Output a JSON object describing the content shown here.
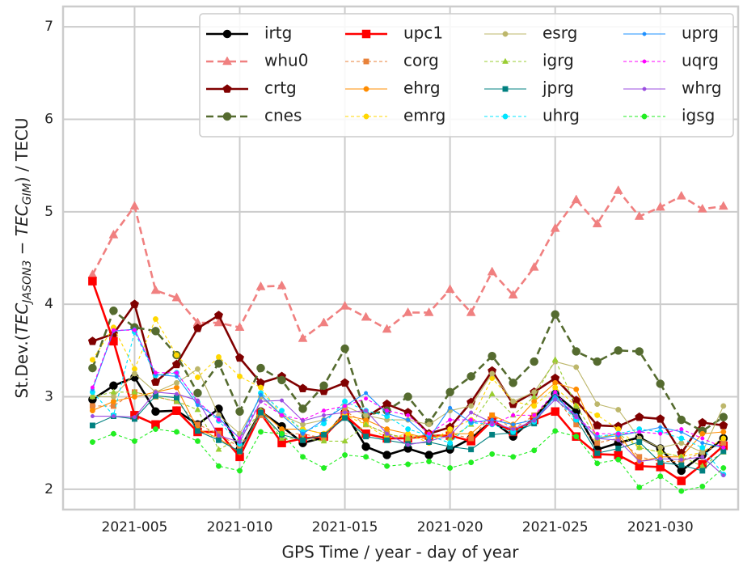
{
  "chart_data": {
    "type": "line",
    "xlabel": "GPS Time / year - day of year",
    "ylabel": {
      "prefix": "St.Dev.(",
      "term1": "TEC",
      "sub1": "JASON3",
      "op": " − ",
      "term2": "TEC",
      "sub2": "GIM",
      "suffix": ") / TECU"
    },
    "x": [
      3,
      4,
      5,
      6,
      7,
      8,
      9,
      10,
      11,
      12,
      13,
      14,
      15,
      16,
      17,
      18,
      19,
      20,
      21,
      22,
      23,
      24,
      25,
      26,
      27,
      28,
      29,
      30,
      31,
      32,
      33
    ],
    "xlim": [
      1.6,
      33.7
    ],
    "xticks": [
      {
        "value": 5,
        "label": "2021-005"
      },
      {
        "value": 10,
        "label": "2021-010"
      },
      {
        "value": 15,
        "label": "2021-015"
      },
      {
        "value": 20,
        "label": "2021-020"
      },
      {
        "value": 25,
        "label": "2021-025"
      },
      {
        "value": 30,
        "label": "2021-030"
      }
    ],
    "ylim": [
      1.78,
      7.22
    ],
    "yticks": [
      2,
      3,
      4,
      5,
      6,
      7
    ],
    "grid": true,
    "legend": "upper right",
    "legend_columns": 4,
    "series": [
      {
        "name": "irtg",
        "color": "#000000",
        "marker": "circle",
        "dashed": false,
        "bold": true,
        "values": [
          2.97,
          3.12,
          3.21,
          2.84,
          2.85,
          2.7,
          2.87,
          2.43,
          2.84,
          2.68,
          2.5,
          2.56,
          2.83,
          2.46,
          2.37,
          2.44,
          2.37,
          2.43,
          2.55,
          2.74,
          2.57,
          2.77,
          3.03,
          2.84,
          2.43,
          2.5,
          2.56,
          2.44,
          2.2,
          2.37,
          2.55
        ]
      },
      {
        "name": "whu0",
        "color": "#f08080",
        "marker": "triangle",
        "dashed": true,
        "bold": true,
        "values": [
          4.32,
          4.75,
          5.06,
          4.15,
          4.07,
          3.8,
          3.8,
          3.75,
          4.19,
          4.2,
          3.63,
          3.8,
          3.98,
          3.86,
          3.73,
          3.91,
          3.91,
          4.16,
          3.91,
          4.35,
          4.1,
          4.4,
          4.82,
          5.13,
          4.87,
          5.23,
          4.95,
          5.05,
          5.17,
          5.03,
          5.06
        ]
      },
      {
        "name": "crtg",
        "color": "#800000",
        "marker": "pentagon",
        "dashed": false,
        "bold": true,
        "values": [
          3.6,
          3.68,
          4.0,
          3.16,
          3.35,
          3.74,
          3.88,
          3.42,
          3.15,
          3.22,
          3.09,
          3.06,
          3.15,
          2.78,
          2.92,
          2.83,
          2.6,
          2.67,
          2.94,
          3.28,
          2.92,
          3.05,
          3.2,
          2.96,
          2.69,
          2.68,
          2.78,
          2.76,
          2.39,
          2.72,
          2.69
        ]
      },
      {
        "name": "cnes",
        "color": "#556b2f",
        "marker": "circle",
        "dashed": true,
        "bold": true,
        "values": [
          3.31,
          3.93,
          3.75,
          3.71,
          3.45,
          3.04,
          3.36,
          2.84,
          3.31,
          3.18,
          2.87,
          3.12,
          3.52,
          2.8,
          2.85,
          3.0,
          2.72,
          3.05,
          3.22,
          3.44,
          3.15,
          3.38,
          3.89,
          3.49,
          3.38,
          3.5,
          3.49,
          3.14,
          2.75,
          2.63,
          2.78
        ]
      },
      {
        "name": "upc1",
        "color": "#ff0000",
        "marker": "square",
        "dashed": false,
        "bold": true,
        "values": [
          4.25,
          3.6,
          2.8,
          2.7,
          2.85,
          2.62,
          2.62,
          2.35,
          2.82,
          2.5,
          2.55,
          2.57,
          2.8,
          2.6,
          2.55,
          2.55,
          2.58,
          2.58,
          2.52,
          2.74,
          2.62,
          2.75,
          2.84,
          2.57,
          2.38,
          2.37,
          2.25,
          2.24,
          2.09,
          2.27,
          2.47
        ]
      },
      {
        "name": "corg",
        "color": "#e8823a",
        "marker": "square",
        "dashed": true,
        "bold": false,
        "values": [
          2.9,
          2.9,
          3.05,
          3.0,
          2.95,
          2.7,
          2.6,
          2.45,
          2.8,
          2.6,
          2.6,
          2.55,
          2.85,
          2.7,
          2.6,
          2.55,
          2.55,
          2.6,
          2.55,
          2.8,
          2.65,
          2.8,
          3.0,
          2.7,
          2.5,
          2.55,
          2.35,
          2.3,
          2.3,
          2.4,
          2.5
        ]
      },
      {
        "name": "ehrg",
        "color": "#ff8c00",
        "marker": "circle",
        "dashed": false,
        "bold": false,
        "values": [
          2.85,
          2.95,
          3.0,
          3.05,
          3.1,
          2.65,
          2.55,
          2.4,
          2.85,
          2.65,
          2.65,
          2.6,
          2.8,
          2.75,
          2.65,
          2.6,
          2.55,
          2.6,
          2.6,
          2.8,
          2.7,
          2.95,
          3.15,
          3.08,
          2.55,
          2.6,
          2.3,
          2.35,
          2.35,
          2.6,
          2.62
        ]
      },
      {
        "name": "emrg",
        "color": "#ffd700",
        "marker": "circle",
        "dashed": true,
        "bold": false,
        "values": [
          3.4,
          3.75,
          3.3,
          3.84,
          3.45,
          3.21,
          3.43,
          3.22,
          3.1,
          2.8,
          2.65,
          2.6,
          2.8,
          2.7,
          2.55,
          2.6,
          2.5,
          2.65,
          2.75,
          3.2,
          2.95,
          2.9,
          3.1,
          2.9,
          2.8,
          2.65,
          2.45,
          2.4,
          2.35,
          2.4,
          2.55
        ]
      },
      {
        "name": "esrg",
        "color": "#bdb76b",
        "marker": "circle",
        "dashed": false,
        "bold": false,
        "values": [
          3.0,
          3.0,
          3.25,
          3.05,
          3.15,
          3.3,
          2.8,
          2.6,
          3.0,
          2.8,
          2.7,
          2.75,
          2.9,
          2.8,
          2.75,
          2.75,
          2.7,
          2.85,
          2.9,
          3.25,
          2.95,
          3.05,
          3.38,
          3.32,
          2.92,
          2.86,
          2.55,
          2.45,
          2.5,
          2.4,
          2.9
        ]
      },
      {
        "name": "igrg",
        "color": "#9acd32",
        "marker": "triangle",
        "dashed": true,
        "bold": false,
        "values": [
          3.0,
          3.05,
          3.05,
          3.0,
          2.95,
          2.86,
          2.43,
          2.55,
          2.85,
          2.55,
          2.55,
          2.52,
          2.52,
          2.7,
          2.6,
          2.55,
          2.6,
          2.55,
          2.7,
          3.03,
          2.8,
          3.0,
          3.4,
          2.9,
          2.55,
          2.6,
          2.45,
          2.4,
          2.35,
          2.25,
          2.4
        ]
      },
      {
        "name": "jprg",
        "color": "#008080",
        "marker": "square",
        "dashed": false,
        "bold": false,
        "values": [
          2.69,
          2.79,
          2.76,
          3.01,
          2.99,
          2.63,
          2.53,
          2.41,
          2.83,
          2.59,
          2.53,
          2.59,
          2.77,
          2.57,
          2.53,
          2.49,
          2.51,
          2.46,
          2.43,
          2.59,
          2.61,
          2.71,
          3.03,
          2.76,
          2.39,
          2.44,
          2.51,
          2.29,
          2.26,
          2.2,
          2.41
        ]
      },
      {
        "name": "uhrg",
        "color": "#00e5ff",
        "marker": "circle",
        "dashed": true,
        "bold": false,
        "values": [
          3.05,
          2.8,
          3.7,
          3.23,
          3.26,
          2.94,
          2.74,
          2.49,
          3.04,
          2.85,
          2.62,
          2.71,
          2.95,
          2.85,
          2.79,
          2.65,
          2.58,
          2.5,
          2.72,
          2.7,
          2.62,
          2.73,
          2.98,
          2.75,
          2.57,
          2.6,
          2.65,
          2.62,
          2.55,
          2.45,
          2.16
        ]
      },
      {
        "name": "uprg",
        "color": "#1e90ff",
        "marker": "dot",
        "dashed": false,
        "bold": false,
        "values": [
          3.08,
          3.71,
          3.73,
          3.24,
          3.22,
          2.91,
          2.77,
          2.55,
          3.02,
          2.8,
          2.6,
          2.75,
          2.9,
          3.04,
          2.82,
          2.75,
          2.55,
          2.88,
          2.72,
          2.75,
          2.7,
          2.75,
          3.0,
          2.8,
          2.55,
          2.58,
          2.62,
          2.67,
          2.62,
          2.5,
          2.45
        ]
      },
      {
        "name": "uqrg",
        "color": "#ff00ff",
        "marker": "dot",
        "dashed": true,
        "bold": false,
        "values": [
          3.1,
          3.72,
          3.72,
          3.26,
          3.26,
          2.95,
          2.75,
          2.55,
          2.95,
          2.8,
          2.75,
          2.85,
          2.9,
          2.98,
          2.85,
          2.8,
          2.6,
          2.75,
          2.75,
          2.7,
          2.8,
          2.8,
          3.05,
          2.78,
          2.6,
          2.6,
          2.62,
          2.6,
          2.65,
          2.55,
          2.45
        ]
      },
      {
        "name": "whrg",
        "color": "#9b4de0",
        "marker": "dot",
        "dashed": false,
        "bold": false,
        "values": [
          2.79,
          2.79,
          2.78,
          3.05,
          3.03,
          2.96,
          2.58,
          2.51,
          2.95,
          2.96,
          2.74,
          2.8,
          2.83,
          2.85,
          2.6,
          2.48,
          2.52,
          2.58,
          2.83,
          2.72,
          2.65,
          2.74,
          2.97,
          2.79,
          2.55,
          2.53,
          2.3,
          2.33,
          2.32,
          2.35,
          2.15
        ]
      },
      {
        "name": "igsg",
        "color": "#22ee22",
        "marker": "circle",
        "dashed": true,
        "bold": false,
        "values": [
          2.51,
          2.6,
          2.52,
          2.65,
          2.62,
          2.52,
          2.25,
          2.2,
          2.62,
          2.6,
          2.35,
          2.23,
          2.37,
          2.35,
          2.25,
          2.27,
          2.3,
          2.23,
          2.29,
          2.38,
          2.35,
          2.42,
          2.63,
          2.57,
          2.28,
          2.32,
          2.02,
          2.14,
          1.98,
          2.03,
          2.23
        ]
      }
    ]
  }
}
